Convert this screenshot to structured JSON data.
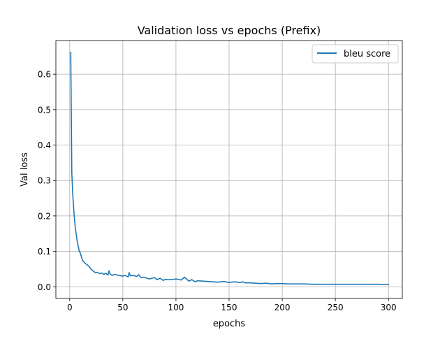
{
  "chart_data": {
    "type": "line",
    "title": "Validation loss vs epochs (Prefix)",
    "xlabel": "epochs",
    "ylabel": "Val loss",
    "xlim": [
      -13,
      313
    ],
    "ylim": [
      -0.033,
      0.695
    ],
    "xticks": [
      0,
      50,
      100,
      150,
      200,
      250,
      300
    ],
    "xtick_labels": [
      "0",
      "50",
      "100",
      "150",
      "200",
      "250",
      "300"
    ],
    "yticks": [
      0.0,
      0.1,
      0.2,
      0.3,
      0.4,
      0.5,
      0.6
    ],
    "ytick_labels": [
      "0.0",
      "0.1",
      "0.2",
      "0.3",
      "0.4",
      "0.5",
      "0.6"
    ],
    "grid": true,
    "legend_position": "top-right",
    "series": [
      {
        "name": "bleu score",
        "color": "#1f77b4",
        "x": [
          1,
          2,
          3,
          4,
          5,
          6,
          7,
          8,
          9,
          10,
          12,
          14,
          16,
          18,
          20,
          22,
          24,
          26,
          28,
          30,
          32,
          34,
          36,
          37,
          38,
          40,
          42,
          45,
          48,
          50,
          52,
          55,
          56,
          57,
          60,
          63,
          65,
          67,
          70,
          75,
          80,
          82,
          85,
          88,
          90,
          95,
          100,
          105,
          108,
          110,
          112,
          115,
          118,
          120,
          125,
          130,
          135,
          140,
          145,
          150,
          155,
          160,
          163,
          165,
          170,
          175,
          180,
          185,
          190,
          195,
          200,
          205,
          210,
          220,
          230,
          240,
          250,
          260,
          270,
          280,
          290,
          300
        ],
        "y": [
          0.662,
          0.32,
          0.255,
          0.21,
          0.175,
          0.15,
          0.13,
          0.115,
          0.1,
          0.095,
          0.075,
          0.068,
          0.063,
          0.058,
          0.05,
          0.045,
          0.04,
          0.041,
          0.037,
          0.039,
          0.035,
          0.038,
          0.033,
          0.045,
          0.036,
          0.032,
          0.035,
          0.033,
          0.031,
          0.03,
          0.032,
          0.028,
          0.04,
          0.031,
          0.032,
          0.029,
          0.034,
          0.026,
          0.027,
          0.022,
          0.026,
          0.02,
          0.024,
          0.018,
          0.021,
          0.02,
          0.022,
          0.019,
          0.027,
          0.022,
          0.016,
          0.02,
          0.014,
          0.017,
          0.016,
          0.015,
          0.014,
          0.013,
          0.015,
          0.012,
          0.014,
          0.012,
          0.014,
          0.011,
          0.011,
          0.01,
          0.009,
          0.01,
          0.008,
          0.009,
          0.009,
          0.008,
          0.008,
          0.008,
          0.007,
          0.007,
          0.007,
          0.007,
          0.007,
          0.007,
          0.007,
          0.006
        ]
      }
    ]
  }
}
